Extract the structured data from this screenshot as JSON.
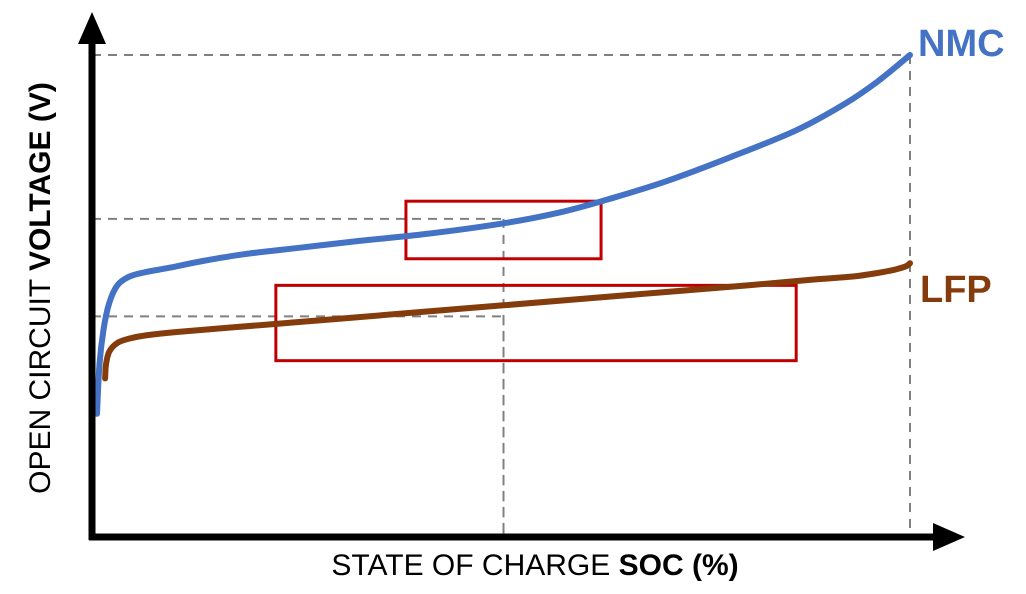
{
  "chart_data": {
    "type": "line",
    "xlabel": {
      "normal": "STATE OF CHARGE ",
      "bold": "SOC (%)"
    },
    "ylabel": {
      "normal": "OPEN CIRCUIT ",
      "bold": "VOLTAGE (V)"
    },
    "xlim": [
      0,
      100
    ],
    "ylim": [
      0,
      100
    ],
    "grid": false,
    "series": [
      {
        "name": "NMC",
        "color": "#4472C4",
        "x": [
          0,
          0.3,
          0.8,
          1.5,
          2.5,
          4,
          6,
          9,
          13,
          18,
          25,
          32,
          40,
          50,
          57,
          63,
          70,
          78,
          86,
          92,
          96,
          100
        ],
        "y": [
          19,
          30,
          38,
          44,
          48,
          50,
          51,
          52,
          53.5,
          55,
          56.5,
          58,
          59.5,
          62,
          64.5,
          67.5,
          71.5,
          77,
          83,
          89,
          94,
          100
        ]
      },
      {
        "name": "LFP",
        "color": "#843C0C",
        "x": [
          1,
          1.1,
          1.5,
          2.5,
          4,
          6,
          10,
          20,
          30,
          40,
          50,
          60,
          70,
          80,
          88,
          93,
          96,
          98,
          99.5,
          100
        ],
        "y": [
          27,
          30,
          33,
          35,
          36,
          36.7,
          37.5,
          39,
          40.5,
          42,
          43.5,
          45,
          46.5,
          48,
          49.3,
          50,
          50.8,
          51.5,
          52.3,
          53
        ]
      }
    ],
    "reference_lines": [
      {
        "x": 50,
        "y": 63
      },
      {
        "x": 50,
        "y": 41
      },
      {
        "x": 100,
        "y": 100
      }
    ],
    "highlight_boxes": [
      {
        "x0": 38,
        "x1": 62,
        "y0": 54,
        "y1": 67,
        "color": "#C00000"
      },
      {
        "x0": 22,
        "x1": 86,
        "y0": 31,
        "y1": 48,
        "color": "#C00000"
      }
    ]
  }
}
